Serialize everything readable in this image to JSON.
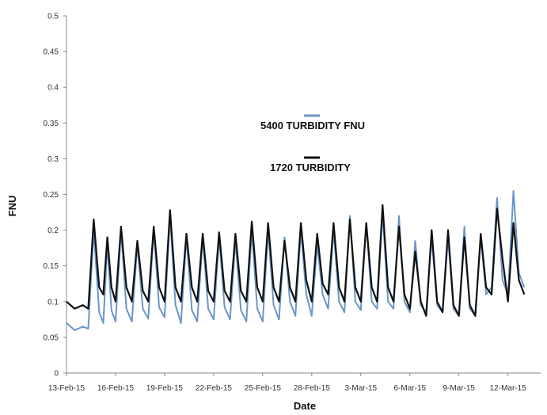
{
  "chart_data": {
    "type": "line",
    "title": "",
    "xlabel": "Date",
    "ylabel": "FNU",
    "ylim": [
      0,
      0.5
    ],
    "y_ticks": [
      "0",
      "0.05",
      "0.1",
      "0.15",
      "0.2",
      "0.25",
      "0.3",
      "0.35",
      "0.4",
      "0.45",
      "0.5"
    ],
    "y_tick_values": [
      0,
      0.05,
      0.1,
      0.15,
      0.2,
      0.25,
      0.3,
      0.35,
      0.4,
      0.45,
      0.5
    ],
    "xlim": [
      "2015-02-13",
      "2015-03-14"
    ],
    "x_ticks": [
      "13-Feb-15",
      "16-Feb-15",
      "19-Feb-15",
      "22-Feb-15",
      "25-Feb-15",
      "28-Feb-15",
      "3-Mar-15",
      "6-Mar-15",
      "9-Mar-15",
      "12-Mar-15"
    ],
    "x_tick_dates": [
      "2015-02-13",
      "2015-02-16",
      "2015-02-19",
      "2015-02-22",
      "2015-02-25",
      "2015-02-28",
      "2015-03-03",
      "2015-03-06",
      "2015-03-09",
      "2015-03-12"
    ],
    "grid": false,
    "legend_position": "center-top",
    "series": [
      {
        "name": "5400 TURBIDITY FNU",
        "color": "#6a96c8",
        "points": [
          [
            "2015-02-13",
            0.07
          ],
          [
            "2015-02-13",
            0.06
          ],
          [
            "2015-02-14",
            0.065
          ],
          [
            "2015-02-14",
            0.062
          ],
          [
            "2015-02-14",
            0.2
          ],
          [
            "2015-02-15",
            0.085
          ],
          [
            "2015-02-15",
            0.07
          ],
          [
            "2015-02-15",
            0.18
          ],
          [
            "2015-02-15",
            0.088
          ],
          [
            "2015-02-16",
            0.072
          ],
          [
            "2015-02-16",
            0.2
          ],
          [
            "2015-02-16",
            0.09
          ],
          [
            "2015-02-17",
            0.072
          ],
          [
            "2015-02-17",
            0.18
          ],
          [
            "2015-02-17",
            0.09
          ],
          [
            "2015-02-18",
            0.076
          ],
          [
            "2015-02-18",
            0.2
          ],
          [
            "2015-02-18",
            0.092
          ],
          [
            "2015-02-19",
            0.078
          ],
          [
            "2015-02-19",
            0.22
          ],
          [
            "2015-02-19",
            0.095
          ],
          [
            "2015-02-20",
            0.07
          ],
          [
            "2015-02-20",
            0.19
          ],
          [
            "2015-02-20",
            0.088
          ],
          [
            "2015-02-21",
            0.072
          ],
          [
            "2015-02-21",
            0.19
          ],
          [
            "2015-02-21",
            0.09
          ],
          [
            "2015-02-22",
            0.075
          ],
          [
            "2015-02-22",
            0.19
          ],
          [
            "2015-02-22",
            0.092
          ],
          [
            "2015-02-23",
            0.075
          ],
          [
            "2015-02-23",
            0.185
          ],
          [
            "2015-02-23",
            0.088
          ],
          [
            "2015-02-24",
            0.072
          ],
          [
            "2015-02-24",
            0.2
          ],
          [
            "2015-02-24",
            0.09
          ],
          [
            "2015-02-25",
            0.072
          ],
          [
            "2015-02-25",
            0.2
          ],
          [
            "2015-02-25",
            0.095
          ],
          [
            "2015-02-26",
            0.075
          ],
          [
            "2015-02-26",
            0.19
          ],
          [
            "2015-02-26",
            0.1
          ],
          [
            "2015-02-27",
            0.08
          ],
          [
            "2015-02-27",
            0.2
          ],
          [
            "2015-02-27",
            0.11
          ],
          [
            "2015-02-28",
            0.08
          ],
          [
            "2015-02-28",
            0.18
          ],
          [
            "2015-02-28",
            0.11
          ],
          [
            "2015-03-01",
            0.09
          ],
          [
            "2015-03-01",
            0.2
          ],
          [
            "2015-03-01",
            0.1
          ],
          [
            "2015-03-02",
            0.085
          ],
          [
            "2015-03-02",
            0.22
          ],
          [
            "2015-03-02",
            0.1
          ],
          [
            "2015-03-03",
            0.088
          ],
          [
            "2015-03-03",
            0.21
          ],
          [
            "2015-03-03",
            0.1
          ],
          [
            "2015-03-04",
            0.09
          ],
          [
            "2015-03-04",
            0.225
          ],
          [
            "2015-03-04",
            0.1
          ],
          [
            "2015-03-05",
            0.09
          ],
          [
            "2015-03-05",
            0.22
          ],
          [
            "2015-03-05",
            0.1
          ],
          [
            "2015-03-06",
            0.085
          ],
          [
            "2015-03-06",
            0.185
          ],
          [
            "2015-03-06",
            0.095
          ],
          [
            "2015-03-07",
            0.085
          ],
          [
            "2015-03-07",
            0.19
          ],
          [
            "2015-03-07",
            0.095
          ],
          [
            "2015-03-08",
            0.085
          ],
          [
            "2015-03-08",
            0.19
          ],
          [
            "2015-03-08",
            0.09
          ],
          [
            "2015-03-09",
            0.08
          ],
          [
            "2015-03-09",
            0.205
          ],
          [
            "2015-03-09",
            0.09
          ],
          [
            "2015-03-10",
            0.08
          ],
          [
            "2015-03-10",
            0.19
          ],
          [
            "2015-03-10",
            0.11
          ],
          [
            "2015-03-11",
            0.12
          ],
          [
            "2015-03-11",
            0.245
          ],
          [
            "2015-03-11",
            0.13
          ],
          [
            "2015-03-12",
            0.11
          ],
          [
            "2015-03-12",
            0.255
          ],
          [
            "2015-03-12",
            0.14
          ],
          [
            "2015-03-13",
            0.12
          ]
        ]
      },
      {
        "name": "1720 TURBIDITY",
        "color": "#111111",
        "points": [
          [
            "2015-02-13",
            0.1
          ],
          [
            "2015-02-13",
            0.09
          ],
          [
            "2015-02-14",
            0.095
          ],
          [
            "2015-02-14",
            0.09
          ],
          [
            "2015-02-14",
            0.215
          ],
          [
            "2015-02-15",
            0.12
          ],
          [
            "2015-02-15",
            0.11
          ],
          [
            "2015-02-15",
            0.19
          ],
          [
            "2015-02-15",
            0.12
          ],
          [
            "2015-02-16",
            0.1
          ],
          [
            "2015-02-16",
            0.205
          ],
          [
            "2015-02-16",
            0.12
          ],
          [
            "2015-02-17",
            0.1
          ],
          [
            "2015-02-17",
            0.185
          ],
          [
            "2015-02-17",
            0.115
          ],
          [
            "2015-02-18",
            0.1
          ],
          [
            "2015-02-18",
            0.205
          ],
          [
            "2015-02-18",
            0.12
          ],
          [
            "2015-02-19",
            0.1
          ],
          [
            "2015-02-19",
            0.228
          ],
          [
            "2015-02-19",
            0.12
          ],
          [
            "2015-02-20",
            0.1
          ],
          [
            "2015-02-20",
            0.195
          ],
          [
            "2015-02-20",
            0.12
          ],
          [
            "2015-02-21",
            0.1
          ],
          [
            "2015-02-21",
            0.195
          ],
          [
            "2015-02-21",
            0.115
          ],
          [
            "2015-02-22",
            0.1
          ],
          [
            "2015-02-22",
            0.197
          ],
          [
            "2015-02-22",
            0.115
          ],
          [
            "2015-02-23",
            0.1
          ],
          [
            "2015-02-23",
            0.195
          ],
          [
            "2015-02-23",
            0.115
          ],
          [
            "2015-02-24",
            0.1
          ],
          [
            "2015-02-24",
            0.212
          ],
          [
            "2015-02-24",
            0.12
          ],
          [
            "2015-02-25",
            0.1
          ],
          [
            "2015-02-25",
            0.21
          ],
          [
            "2015-02-25",
            0.12
          ],
          [
            "2015-02-26",
            0.1
          ],
          [
            "2015-02-26",
            0.185
          ],
          [
            "2015-02-26",
            0.12
          ],
          [
            "2015-02-27",
            0.1
          ],
          [
            "2015-02-27",
            0.21
          ],
          [
            "2015-02-27",
            0.13
          ],
          [
            "2015-02-28",
            0.1
          ],
          [
            "2015-02-28",
            0.195
          ],
          [
            "2015-02-28",
            0.125
          ],
          [
            "2015-03-01",
            0.11
          ],
          [
            "2015-03-01",
            0.21
          ],
          [
            "2015-03-01",
            0.12
          ],
          [
            "2015-03-02",
            0.1
          ],
          [
            "2015-03-02",
            0.215
          ],
          [
            "2015-03-02",
            0.12
          ],
          [
            "2015-03-03",
            0.1
          ],
          [
            "2015-03-03",
            0.21
          ],
          [
            "2015-03-03",
            0.12
          ],
          [
            "2015-03-04",
            0.1
          ],
          [
            "2015-03-04",
            0.235
          ],
          [
            "2015-03-04",
            0.12
          ],
          [
            "2015-03-05",
            0.1
          ],
          [
            "2015-03-05",
            0.205
          ],
          [
            "2015-03-05",
            0.11
          ],
          [
            "2015-03-06",
            0.09
          ],
          [
            "2015-03-06",
            0.17
          ],
          [
            "2015-03-06",
            0.1
          ],
          [
            "2015-03-07",
            0.08
          ],
          [
            "2015-03-07",
            0.2
          ],
          [
            "2015-03-07",
            0.1
          ],
          [
            "2015-03-08",
            0.085
          ],
          [
            "2015-03-08",
            0.2
          ],
          [
            "2015-03-08",
            0.095
          ],
          [
            "2015-03-09",
            0.08
          ],
          [
            "2015-03-09",
            0.19
          ],
          [
            "2015-03-09",
            0.095
          ],
          [
            "2015-03-10",
            0.08
          ],
          [
            "2015-03-10",
            0.195
          ],
          [
            "2015-03-10",
            0.12
          ],
          [
            "2015-03-11",
            0.11
          ],
          [
            "2015-03-11",
            0.23
          ],
          [
            "2015-03-11",
            0.16
          ],
          [
            "2015-03-12",
            0.1
          ],
          [
            "2015-03-12",
            0.21
          ],
          [
            "2015-03-12",
            0.13
          ],
          [
            "2015-03-13",
            0.11
          ]
        ]
      }
    ]
  }
}
